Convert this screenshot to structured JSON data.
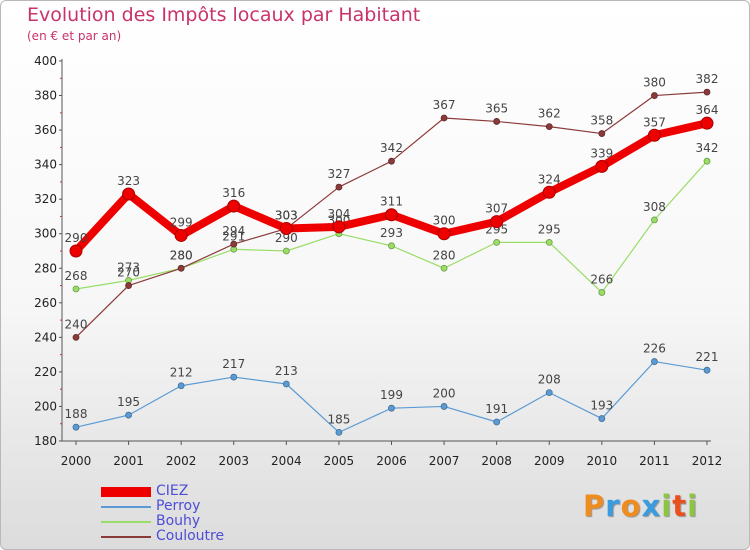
{
  "title": "Evolution des Impôts locaux par Habitant",
  "subtitle": "(en € et par an)",
  "chart_data": {
    "type": "line",
    "title": "Evolution des Impôts locaux par Habitant",
    "subtitle": "(en € et par an)",
    "x": [
      "2000",
      "2001",
      "2002",
      "2003",
      "2004",
      "2005",
      "2006",
      "2007",
      "2008",
      "2009",
      "2010",
      "2011",
      "2012"
    ],
    "ylim": [
      180,
      400
    ],
    "yticks": [
      180,
      200,
      220,
      240,
      260,
      280,
      300,
      320,
      340,
      360,
      380,
      400
    ],
    "grid": false,
    "legend_position": "bottom-left",
    "series": [
      {
        "name": "CIEZ",
        "color": "#ee0000",
        "values": [
          290,
          323,
          299,
          316,
          303,
          304,
          311,
          300,
          307,
          324,
          339,
          357,
          364
        ],
        "thick": true
      },
      {
        "name": "Perroy",
        "color": "#5b9bd5",
        "values": [
          188,
          195,
          212,
          217,
          213,
          185,
          199,
          200,
          191,
          208,
          193,
          226,
          221
        ]
      },
      {
        "name": "Bouhy",
        "color": "#99dd66",
        "values": [
          268,
          273,
          280,
          291,
          290,
          300,
          293,
          280,
          295,
          295,
          266,
          308,
          342
        ]
      },
      {
        "name": "Couloutre",
        "color": "#8b3a3a",
        "values": [
          240,
          270,
          280,
          294,
          303,
          327,
          342,
          367,
          365,
          362,
          358,
          380,
          382
        ]
      }
    ]
  },
  "logo": {
    "text": "Proxiti",
    "letters": [
      {
        "ch": "P",
        "color": "#f08c1e"
      },
      {
        "ch": "r",
        "color": "#3a9be0"
      },
      {
        "ch": "o",
        "color": "#f08c1e"
      },
      {
        "ch": "x",
        "color": "#3a9be0"
      },
      {
        "ch": "i",
        "color": "#8cc63f"
      },
      {
        "ch": "t",
        "color": "#e8501e"
      },
      {
        "ch": "i",
        "color": "#8cc63f"
      }
    ]
  }
}
